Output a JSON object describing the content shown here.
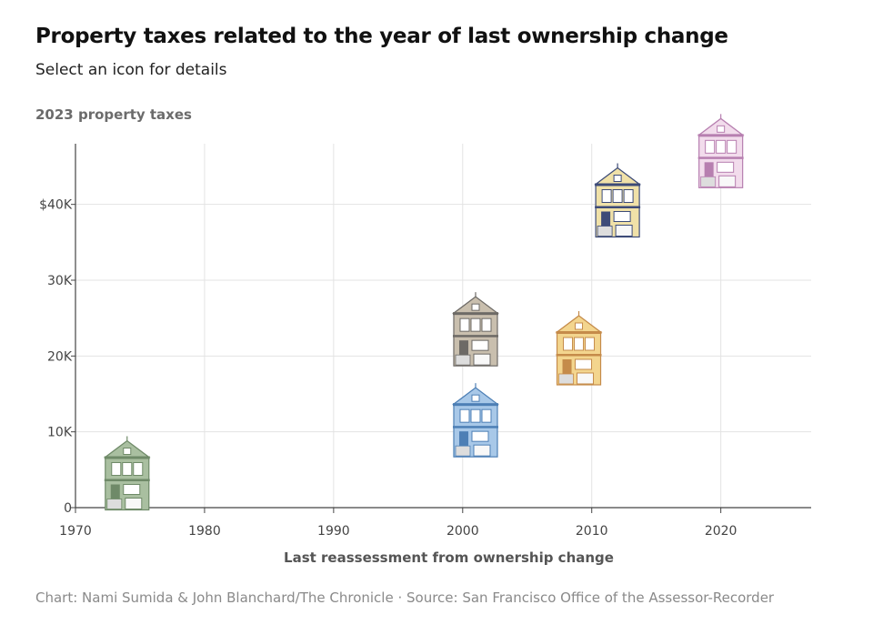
{
  "title": "Property taxes related to the year of last ownership change",
  "subtitle": "Select an icon for details",
  "footer": "Chart: Nami Sumida & John Blanchard/The Chronicle · Source: San Francisco Office of the Assessor-Recorder",
  "chart_data": {
    "type": "scatter",
    "title": "Property taxes related to the year of last ownership change",
    "ylabel": "2023 property taxes",
    "xlabel": "Last reassessment from ownership change",
    "xlim": [
      1970,
      2027
    ],
    "ylim": [
      0,
      48000
    ],
    "xticks": [
      {
        "value": 1970,
        "label": "1970"
      },
      {
        "value": 1980,
        "label": "1980"
      },
      {
        "value": 1990,
        "label": "1990"
      },
      {
        "value": 2000,
        "label": "2000"
      },
      {
        "value": 2010,
        "label": "2010"
      },
      {
        "value": 2020,
        "label": "2020"
      }
    ],
    "yticks": [
      {
        "value": 0,
        "label": "0"
      },
      {
        "value": 10000,
        "label": "10K"
      },
      {
        "value": 20000,
        "label": "20K"
      },
      {
        "value": 30000,
        "label": "30K"
      },
      {
        "value": 40000,
        "label": "$40K"
      }
    ],
    "grid": true,
    "points": [
      {
        "name": "green house",
        "x": 1974,
        "y": 4500,
        "color": "#a9bfa0",
        "trim": "#6f8a68"
      },
      {
        "name": "blue house",
        "x": 2001,
        "y": 11500,
        "color": "#a8c8e8",
        "trim": "#4d7fb5"
      },
      {
        "name": "gray house",
        "x": 2001,
        "y": 23500,
        "color": "#c9bfae",
        "trim": "#6d6a66"
      },
      {
        "name": "yellow house",
        "x": 2009,
        "y": 21000,
        "color": "#f3d58e",
        "trim": "#c58b4a"
      },
      {
        "name": "multicolor house",
        "x": 2012,
        "y": 40500,
        "color": "#f0e1a8",
        "trim": "#3d4b78"
      },
      {
        "name": "pink house",
        "x": 2020,
        "y": 47000,
        "color": "#f2dcec",
        "trim": "#b77fb0"
      }
    ]
  }
}
